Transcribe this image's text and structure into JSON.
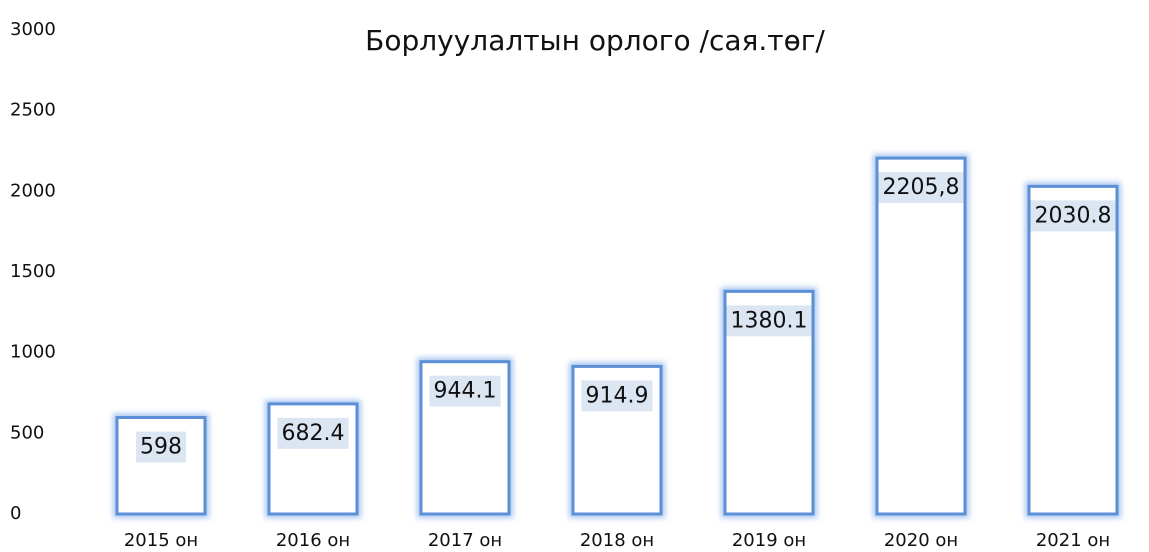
{
  "chart_data": {
    "type": "bar",
    "title": "Борлуулалтын орлого /сая.төг/",
    "categories": [
      "2015 он",
      "2016 он",
      "2017 он",
      "2018 он",
      "2019 он",
      "2020 он",
      "2021 он"
    ],
    "values": [
      598,
      682.4,
      944.1,
      914.9,
      1380.1,
      2205.8,
      2030.8
    ],
    "value_labels": [
      "598",
      "682.4",
      "944.1",
      "914.9",
      "1380.1",
      "2205,8",
      "2030.8"
    ],
    "color": "#5b8fd6",
    "ylim": [
      0,
      3000
    ],
    "yticks": [
      0,
      500,
      1000,
      1500,
      2000,
      2500,
      3000
    ],
    "grid": false
  }
}
